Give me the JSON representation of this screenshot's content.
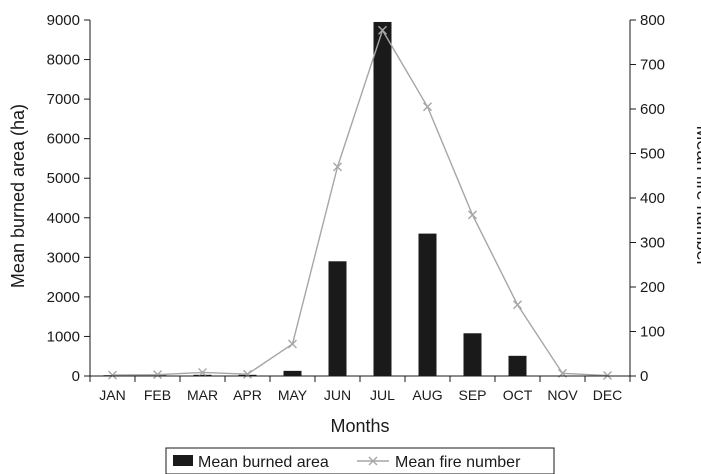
{
  "chart_data": {
    "type": "bar",
    "categories": [
      "JAN",
      "FEB",
      "MAR",
      "APR",
      "MAY",
      "JUN",
      "JUL",
      "AUG",
      "SEP",
      "OCT",
      "NOV",
      "DEC"
    ],
    "series": [
      {
        "name": "Mean burned area",
        "type": "bar",
        "axis": "left",
        "color": "#1a1a1a",
        "values": [
          20,
          20,
          30,
          30,
          130,
          2900,
          8950,
          3600,
          1080,
          510,
          10,
          5
        ]
      },
      {
        "name": "Mean fire number",
        "type": "line",
        "axis": "right",
        "color": "#a6a6a6",
        "marker": "x",
        "values": [
          2,
          3,
          8,
          4,
          72,
          470,
          777,
          605,
          362,
          160,
          6,
          1
        ]
      }
    ],
    "xlabel": "Months",
    "ylabel": "Mean burned area (ha)",
    "ylabel_right": "Mean fire number",
    "ylim": [
      0,
      9000
    ],
    "ylim_right": [
      0,
      800
    ],
    "yticks": [
      "0",
      "1000",
      "2000",
      "3000",
      "4000",
      "5000",
      "6000",
      "7000",
      "8000",
      "9000"
    ],
    "yticks_right": [
      "0",
      "100",
      "200",
      "300",
      "400",
      "500",
      "600",
      "700",
      "800"
    ],
    "grid": false,
    "legend_position": "bottom-center"
  }
}
